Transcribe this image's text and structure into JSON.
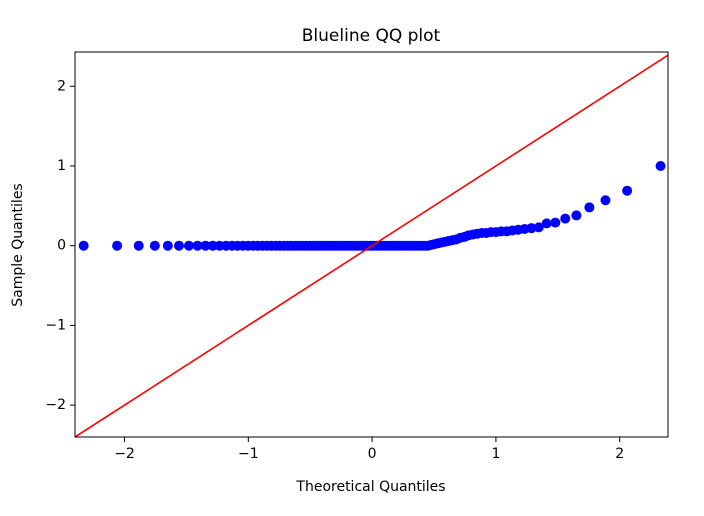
{
  "chart_data": {
    "type": "scatter",
    "title": "Blueline QQ plot",
    "x_label": "Theoretical Quantiles",
    "y_label": "Sample Quantiles",
    "points": {
      "color": "#0000ff",
      "x": [
        -2.33,
        -2.06,
        -1.885,
        -1.755,
        -1.65,
        -1.56,
        -1.48,
        -1.41,
        -1.346,
        -1.287,
        -1.232,
        -1.18,
        -1.132,
        -1.087,
        -1.043,
        -1.001,
        -0.961,
        -0.922,
        -0.885,
        -0.849,
        -0.814,
        -0.779,
        -0.746,
        -0.714,
        -0.682,
        -0.651,
        -0.621,
        -0.591,
        -0.562,
        -0.533,
        -0.505,
        -0.477,
        -0.449,
        -0.422,
        -0.395,
        -0.368,
        -0.342,
        -0.316,
        -0.29,
        -0.264,
        -0.239,
        -0.213,
        -0.188,
        -0.162,
        -0.137,
        -0.112,
        -0.087,
        -0.062,
        -0.037,
        -0.012,
        0.012,
        0.037,
        0.062,
        0.087,
        0.112,
        0.137,
        0.162,
        0.188,
        0.213,
        0.239,
        0.264,
        0.29,
        0.316,
        0.342,
        0.368,
        0.395,
        0.422,
        0.449,
        0.478,
        0.505,
        0.533,
        0.562,
        0.591,
        0.621,
        0.651,
        0.682,
        0.714,
        0.746,
        0.779,
        0.814,
        0.849,
        0.885,
        0.922,
        0.961,
        1.001,
        1.043,
        1.087,
        1.132,
        1.18,
        1.232,
        1.287,
        1.346,
        1.41,
        1.48,
        1.56,
        1.65,
        1.755,
        1.885,
        2.06,
        2.33
      ],
      "values": [
        0,
        0,
        0,
        0,
        0,
        0,
        0,
        0,
        0,
        0,
        0,
        0,
        0,
        0,
        0,
        0,
        0,
        0,
        0,
        0,
        0,
        0,
        0,
        0,
        0,
        0,
        0,
        0,
        0,
        0,
        0,
        0,
        0,
        0,
        0,
        0,
        0,
        0,
        0,
        0,
        0,
        0,
        0,
        0,
        0,
        0,
        0,
        0,
        0,
        0,
        0,
        0,
        0,
        0,
        0,
        0,
        0,
        0,
        0,
        0,
        0,
        0,
        0,
        0,
        0,
        0,
        0,
        0,
        0.01,
        0.02,
        0.03,
        0.04,
        0.05,
        0.06,
        0.07,
        0.08,
        0.1,
        0.11,
        0.13,
        0.14,
        0.15,
        0.16,
        0.16,
        0.17,
        0.17,
        0.18,
        0.18,
        0.19,
        0.2,
        0.21,
        0.22,
        0.23,
        0.28,
        0.29,
        0.34,
        0.38,
        0.48,
        0.57,
        0.69,
        1.0
      ]
    },
    "reference_line": {
      "color": "#ff0000",
      "x": [
        -2.4,
        2.4
      ],
      "values": [
        -2.4,
        2.4
      ]
    },
    "xlim": [
      -2.4,
      2.39
    ],
    "ylim": [
      -2.4,
      2.43
    ],
    "xticks": [
      {
        "value": -2,
        "label": "−2"
      },
      {
        "value": -1,
        "label": "−1"
      },
      0,
      1,
      2
    ],
    "yticks": [
      {
        "value": -2,
        "label": "−2"
      },
      {
        "value": -1,
        "label": "−1"
      },
      0,
      1,
      2
    ]
  }
}
